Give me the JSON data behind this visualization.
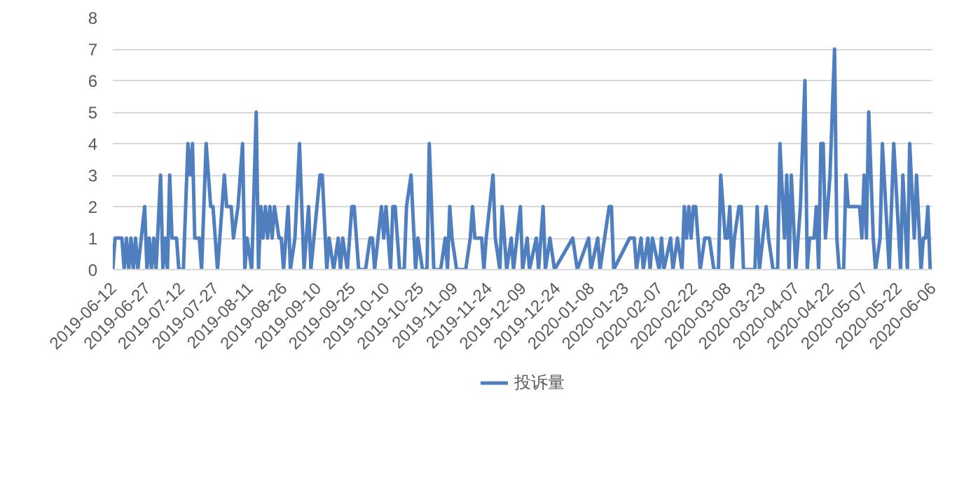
{
  "chart_data": {
    "type": "line",
    "x": [
      "2019-06-12",
      "2019-06-13",
      "2019-06-16",
      "2019-06-17",
      "2019-06-18",
      "2019-06-19",
      "2019-06-20",
      "2019-06-21",
      "2019-06-22",
      "2019-06-23",
      "2019-06-26",
      "2019-06-27",
      "2019-06-28",
      "2019-06-29",
      "2019-06-30",
      "2019-07-01",
      "2019-07-03",
      "2019-07-04",
      "2019-07-05",
      "2019-07-06",
      "2019-07-07",
      "2019-07-08",
      "2019-07-10",
      "2019-07-11",
      "2019-07-13",
      "2019-07-15",
      "2019-07-16",
      "2019-07-17",
      "2019-07-18",
      "2019-07-20",
      "2019-07-21",
      "2019-07-23",
      "2019-07-25",
      "2019-07-26",
      "2019-07-28",
      "2019-07-30",
      "2019-07-31",
      "2019-08-01",
      "2019-08-03",
      "2019-08-04",
      "2019-08-06",
      "2019-08-08",
      "2019-08-09",
      "2019-08-10",
      "2019-08-12",
      "2019-08-14",
      "2019-08-15",
      "2019-08-16",
      "2019-08-17",
      "2019-08-18",
      "2019-08-19",
      "2019-08-20",
      "2019-08-21",
      "2019-08-22",
      "2019-08-24",
      "2019-08-25",
      "2019-08-26",
      "2019-08-28",
      "2019-08-29",
      "2019-08-31",
      "2019-09-02",
      "2019-09-04",
      "2019-09-06",
      "2019-09-07",
      "2019-09-11",
      "2019-09-12",
      "2019-09-14",
      "2019-09-15",
      "2019-09-17",
      "2019-09-19",
      "2019-09-20",
      "2019-09-21",
      "2019-09-23",
      "2019-09-25",
      "2019-09-26",
      "2019-09-28",
      "2019-10-01",
      "2019-10-03",
      "2019-10-04",
      "2019-10-05",
      "2019-10-08",
      "2019-10-09",
      "2019-10-10",
      "2019-10-12",
      "2019-10-13",
      "2019-10-14",
      "2019-10-16",
      "2019-10-18",
      "2019-10-19",
      "2019-10-21",
      "2019-10-23",
      "2019-10-24",
      "2019-10-26",
      "2019-10-28",
      "2019-10-29",
      "2019-10-31",
      "2019-11-03",
      "2019-11-05",
      "2019-11-06",
      "2019-11-07",
      "2019-11-08",
      "2019-11-10",
      "2019-11-14",
      "2019-11-16",
      "2019-11-17",
      "2019-11-18",
      "2019-11-21",
      "2019-11-22",
      "2019-11-23",
      "2019-11-26",
      "2019-11-27",
      "2019-11-29",
      "2019-11-30",
      "2019-12-02",
      "2019-12-04",
      "2019-12-05",
      "2019-12-08",
      "2019-12-09",
      "2019-12-11",
      "2019-12-12",
      "2019-12-15",
      "2019-12-16",
      "2019-12-18",
      "2019-12-19",
      "2019-12-21",
      "2019-12-23",
      "2019-12-31",
      "2020-01-02",
      "2020-01-07",
      "2020-01-08",
      "2020-01-11",
      "2020-01-12",
      "2020-01-16",
      "2020-01-17",
      "2020-01-18",
      "2020-01-25",
      "2020-01-27",
      "2020-01-28",
      "2020-01-30",
      "2020-01-31",
      "2020-02-02",
      "2020-02-03",
      "2020-02-04",
      "2020-02-07",
      "2020-02-08",
      "2020-02-09",
      "2020-02-12",
      "2020-02-13",
      "2020-02-15",
      "2020-02-17",
      "2020-02-18",
      "2020-02-19",
      "2020-02-20",
      "2020-02-21",
      "2020-02-22",
      "2020-02-23",
      "2020-02-25",
      "2020-02-27",
      "2020-02-29",
      "2020-03-02",
      "2020-03-04",
      "2020-03-05",
      "2020-03-07",
      "2020-03-08",
      "2020-03-09",
      "2020-03-10",
      "2020-03-11",
      "2020-03-13",
      "2020-03-14",
      "2020-03-15",
      "2020-03-20",
      "2020-03-21",
      "2020-03-22",
      "2020-03-25",
      "2020-03-26",
      "2020-03-28",
      "2020-03-30",
      "2020-03-31",
      "2020-04-02",
      "2020-04-03",
      "2020-04-04",
      "2020-04-05",
      "2020-04-07",
      "2020-04-09",
      "2020-04-11",
      "2020-04-12",
      "2020-04-13",
      "2020-04-15",
      "2020-04-16",
      "2020-04-17",
      "2020-04-18",
      "2020-04-19",
      "2020-04-20",
      "2020-04-22",
      "2020-04-24",
      "2020-04-25",
      "2020-04-26",
      "2020-04-28",
      "2020-04-29",
      "2020-04-30",
      "2020-05-05",
      "2020-05-06",
      "2020-05-07",
      "2020-05-08",
      "2020-05-09",
      "2020-05-11",
      "2020-05-12",
      "2020-05-14",
      "2020-05-15",
      "2020-05-18",
      "2020-05-20",
      "2020-05-23",
      "2020-05-24",
      "2020-05-26",
      "2020-05-27",
      "2020-05-29",
      "2020-05-30",
      "2020-06-01",
      "2020-06-02",
      "2020-06-03",
      "2020-06-04",
      "2020-06-05"
    ],
    "series": [
      {
        "name": "投诉量",
        "color": "#4f7fbe",
        "values": [
          0,
          1,
          1,
          0,
          1,
          0,
          1,
          0,
          1,
          0,
          2,
          0,
          1,
          0,
          1,
          0,
          3,
          0,
          1,
          0,
          3,
          1,
          1,
          0,
          0,
          4,
          3,
          4,
          1,
          1,
          0,
          4,
          2,
          2,
          0,
          2,
          3,
          2,
          2,
          1,
          2,
          4,
          0,
          1,
          0,
          5,
          0,
          2,
          1,
          2,
          1,
          2,
          1,
          2,
          1,
          1,
          0,
          2,
          0,
          1,
          4,
          0,
          2,
          0,
          3,
          3,
          0,
          1,
          0,
          1,
          0,
          1,
          0,
          2,
          2,
          0,
          0,
          1,
          1,
          0,
          2,
          1,
          2,
          0,
          2,
          2,
          0,
          0,
          2,
          3,
          0,
          1,
          0,
          0,
          4,
          0,
          0,
          1,
          0,
          2,
          1,
          0,
          0,
          1,
          2,
          1,
          1,
          0,
          1,
          3,
          1,
          0,
          2,
          0,
          1,
          0,
          2,
          0,
          1,
          0,
          1,
          0,
          2,
          0,
          1,
          0,
          1,
          0,
          1,
          0,
          1,
          0,
          2,
          2,
          0,
          1,
          1,
          0,
          1,
          0,
          1,
          0,
          1,
          0,
          1,
          0,
          1,
          0,
          1,
          0,
          2,
          1,
          2,
          1,
          2,
          2,
          0,
          1,
          1,
          0,
          0,
          3,
          1,
          1,
          2,
          0,
          1,
          2,
          2,
          0,
          0,
          2,
          0,
          2,
          1,
          0,
          0,
          4,
          1,
          3,
          0,
          3,
          0,
          2,
          6,
          0,
          1,
          1,
          2,
          0,
          4,
          4,
          1,
          3,
          7,
          1,
          0,
          0,
          3,
          2,
          2,
          1,
          3,
          1,
          5,
          1,
          0,
          1,
          4,
          0,
          4,
          0,
          3,
          0,
          4,
          1,
          3,
          0,
          1,
          1,
          2,
          0
        ]
      }
    ],
    "xlim": [
      "2019-06-12",
      "2020-06-06"
    ],
    "xticks": [
      "2019-06-12",
      "2019-06-27",
      "2019-07-12",
      "2019-07-27",
      "2019-08-11",
      "2019-08-26",
      "2019-09-10",
      "2019-09-25",
      "2019-10-10",
      "2019-10-25",
      "2019-11-09",
      "2019-11-24",
      "2019-12-09",
      "2019-12-24",
      "2020-01-08",
      "2020-01-23",
      "2020-02-07",
      "2020-02-22",
      "2020-03-08",
      "2020-03-23",
      "2020-04-07",
      "2020-04-22",
      "2020-05-07",
      "2020-05-22",
      "2020-06-06"
    ],
    "ylim": [
      0,
      8
    ],
    "yticks": [
      0,
      1,
      2,
      3,
      4,
      5,
      6,
      7,
      8
    ],
    "grid": "y",
    "legend": "bottom",
    "marker": "none",
    "line_style": "solid"
  }
}
